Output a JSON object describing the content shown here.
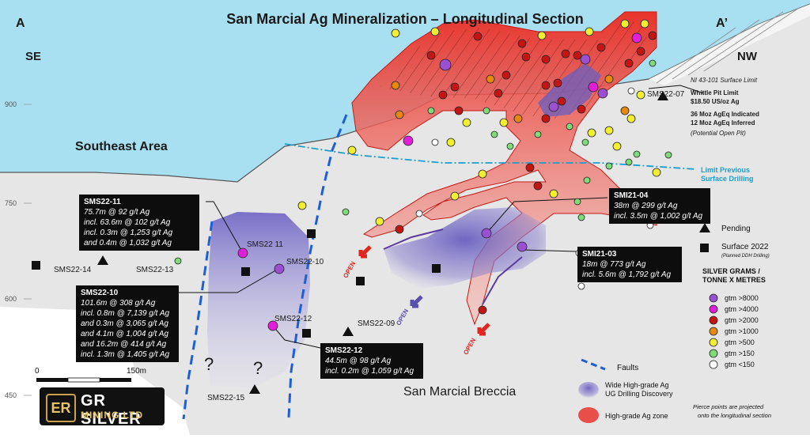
{
  "title": "San Marcial Ag Mineralization – Longitudinal Section",
  "corners": {
    "left": "A",
    "right": "A’",
    "left_dir": "SE",
    "right_dir": "NW"
  },
  "elevations": [
    "900",
    "750",
    "600",
    "450"
  ],
  "areas": {
    "southeast": "Southeast Area",
    "breccia": "San Marcial Breccia"
  },
  "pit_note": {
    "line1": "NI 43-101 Surface Limit",
    "line2": "Whittle Pit Limit",
    "line3": "$18.50 US/oz Ag",
    "line4": "36 Moz AgEq Indicated",
    "line5": "12 Moz AgEq Inferred",
    "line6": "(Potential Open Pit)"
  },
  "limit_previous": {
    "line1": "Limit Previous",
    "line2": "Surface Drilling"
  },
  "holes": {
    "sms22_07": "SMS22-07",
    "sms22_11": "SMS22 11",
    "sms22_10": "SMS22-10",
    "sms22_13": "SMS22-13",
    "sms22_14": "SMS22-14",
    "sms22_12": "SMS22-12",
    "sms22_09": "SMS22-09",
    "sms22_15": "SMS22-15"
  },
  "callouts": {
    "sms22_11": {
      "title": "SMS22-11",
      "lines": [
        "75.7m @ 92 g/t Ag",
        "incl.  63.6m @ 102 g/t Ag",
        "incl.  0.3m @ 1,253 g/t Ag",
        "and   0.4m @ 1,032 g/t Ag"
      ]
    },
    "sms22_10": {
      "title": "SMS22-10",
      "lines": [
        "101.6m @ 308 g/t Ag",
        "incl.  0.8m @ 7,139 g/t Ag",
        "and   0.3m @ 3,065 g/t Ag",
        "and   4.1m @ 1,004 g/t Ag",
        "and   16.2m @ 414 g/t Ag",
        "incl.  1.3m @ 1,405 g/t Ag"
      ]
    },
    "sms22_12": {
      "title": "SMS22-12",
      "lines": [
        "44.5m @ 98 g/t Ag",
        "incl. 0.2m @ 1,059 g/t Ag"
      ]
    },
    "smi21_04": {
      "title": "SMI21-04",
      "lines": [
        "38m @ 299 g/t Ag",
        "incl.  3.5m @ 1,002 g/t Ag"
      ]
    },
    "smi21_03": {
      "title": "SMI21-03",
      "lines": [
        "18m @ 773 g/t Ag",
        "incl. 5.6m @ 1,792 g/t Ag"
      ]
    }
  },
  "open_label": "OPEN",
  "question_mark": "?",
  "scale": {
    "zero": "0",
    "end": "150m"
  },
  "legend": {
    "pending": "Pending",
    "surface": "Surface 2022",
    "surface_sub": "(Planned DDH Drilling)",
    "header1": "SILVER GRAMS /",
    "header2": "TONNE X METRES",
    "classes": [
      {
        "label": "gtm >8000",
        "color": "#9b4fd1"
      },
      {
        "label": "gtm >4000",
        "color": "#e020d8"
      },
      {
        "label": "gtm >2000",
        "color": "#c41414"
      },
      {
        "label": "gtm >1000",
        "color": "#e8890f"
      },
      {
        "label": "gtm >500",
        "color": "#f2ee30"
      },
      {
        "label": "gtm >150",
        "color": "#7fdc7a"
      },
      {
        "label": "gtm <150",
        "color": "#ffffff"
      }
    ],
    "faults": "Faults",
    "wide_zone1": "Wide High-grade Ag",
    "wide_zone2": "UG Drilling Discovery",
    "high_grade": "High-grade Ag zone",
    "note1": "Pierce points are projected",
    "note2": "onto the longitudinal section"
  },
  "logo": {
    "mark": "ER",
    "line1": "GR SILVER",
    "line2": "MINING LTD"
  },
  "colors": {
    "sky": "#a8e0f2",
    "ground": "#e6e6e6",
    "red_zone": "#e8342c",
    "purple_zone": "#7a6fc4",
    "fault": "#1f5fd6"
  }
}
